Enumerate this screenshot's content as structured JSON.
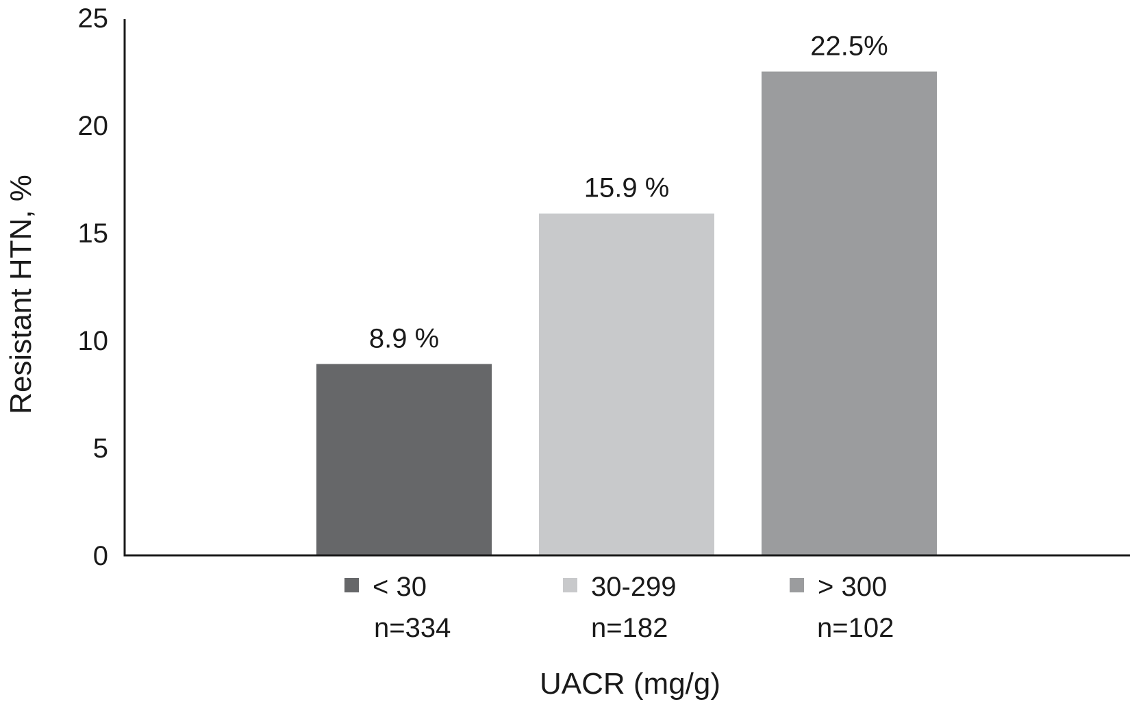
{
  "chart_data": {
    "type": "bar",
    "xlabel": "UACR (mg/g)",
    "ylabel": "Resistant HTN, %",
    "ylim": [
      0,
      25
    ],
    "yticks": [
      "0",
      "5",
      "10",
      "15",
      "20",
      "25"
    ],
    "grid": false,
    "legend": "none",
    "categories": [
      "< 30",
      "30-299",
      "> 300"
    ],
    "category_counts": [
      "n=334",
      "n=182",
      "n=102"
    ],
    "values": [
      8.9,
      15.9,
      22.5
    ],
    "data_labels": [
      "8.9 %",
      "15.9 %",
      "22.5%"
    ],
    "colors": [
      "#666769",
      "#c8c9cb",
      "#9b9c9e"
    ]
  }
}
